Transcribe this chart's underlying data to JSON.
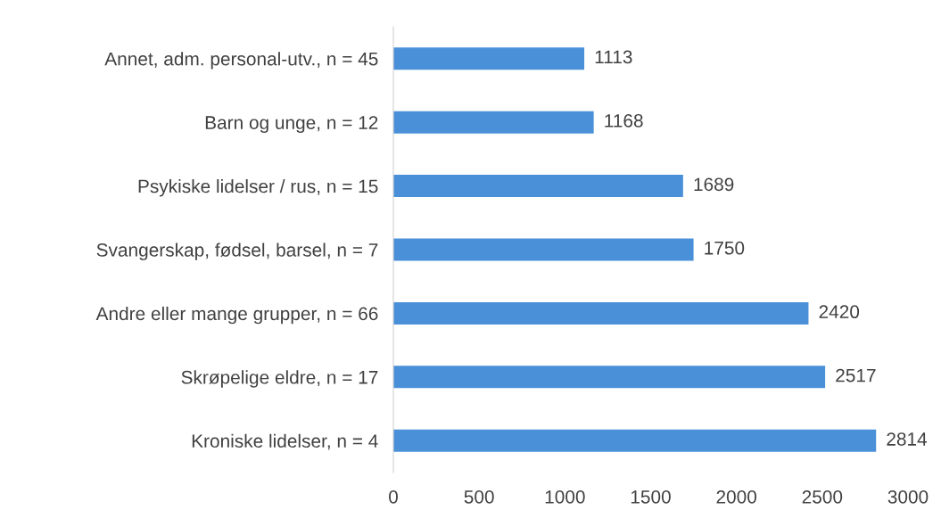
{
  "chart_data": {
    "type": "bar",
    "orientation": "horizontal",
    "categories": [
      "Annet, adm. personal-utv., n = 45",
      "Barn og unge, n = 12",
      "Psykiske lidelser / rus, n = 15",
      "Svangerskap, fødsel, barsel, n = 7",
      "Andre eller mange grupper, n = 66",
      "Skrøpelige eldre, n = 17",
      "Kroniske lidelser, n = 4"
    ],
    "values": [
      1113,
      1168,
      1689,
      1750,
      2420,
      2517,
      2814
    ],
    "color": "#4a90d9",
    "xlim": [
      0,
      3000
    ],
    "xticks": [
      0,
      500,
      1000,
      1500,
      2000,
      2500,
      3000
    ],
    "data_labels": true,
    "grid": false,
    "legend": false
  }
}
